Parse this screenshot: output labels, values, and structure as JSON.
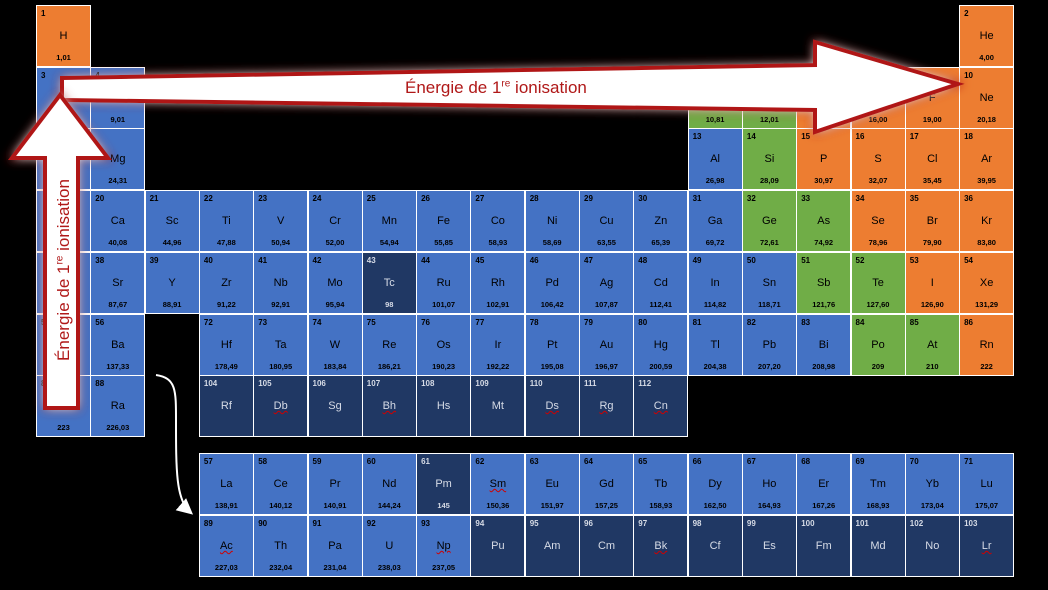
{
  "colors": {
    "metal": "#4472c4",
    "unknown": "#203864",
    "metalloid": "#70ad47",
    "nonmetal": "#ed7d31",
    "arrow_border": "#b01818",
    "arrow_fill": "#ffffff"
  },
  "arrows": {
    "horizontal": {
      "text": "Énergie de 1",
      "sup": "re",
      "text_end": " ionisation"
    },
    "vertical": {
      "text": "Énergie de 1",
      "sup": "re",
      "text_end": " ionisation"
    }
  },
  "elements": [
    {
      "n": "1",
      "s": "H",
      "m": "1,01",
      "row": 1,
      "col": 1,
      "cat": "nonmetal"
    },
    {
      "n": "2",
      "s": "He",
      "m": "4,00",
      "row": 1,
      "col": 18,
      "cat": "nonmetal"
    },
    {
      "n": "3",
      "s": "Li",
      "m": "",
      "row": 2,
      "col": 1,
      "cat": "metal"
    },
    {
      "n": "4",
      "s": "",
      "m": "9,01",
      "row": 2,
      "col": 2,
      "cat": "metal"
    },
    {
      "n": "",
      "s": "",
      "m": "10,81",
      "row": 2,
      "col": 13,
      "cat": "metalloid"
    },
    {
      "n": "",
      "s": "",
      "m": "12,01",
      "row": 2,
      "col": 14,
      "cat": "metalloid"
    },
    {
      "n": "",
      "s": "",
      "m": "",
      "row": 2,
      "col": 15,
      "cat": "nonmetal"
    },
    {
      "n": "",
      "s": "",
      "m": "16,00",
      "row": 2,
      "col": 16,
      "cat": "nonmetal"
    },
    {
      "n": "9",
      "s": "F",
      "m": "19,00",
      "row": 2,
      "col": 17,
      "cat": "nonmetal"
    },
    {
      "n": "10",
      "s": "Ne",
      "m": "20,18",
      "row": 2,
      "col": 18,
      "cat": "nonmetal"
    },
    {
      "n": "",
      "s": "",
      "m": "",
      "row": 3,
      "col": 1,
      "cat": "metal"
    },
    {
      "n": "",
      "s": "Mg",
      "m": "24,31",
      "row": 3,
      "col": 2,
      "cat": "metal"
    },
    {
      "n": "13",
      "s": "Al",
      "m": "26,98",
      "row": 3,
      "col": 13,
      "cat": "metal"
    },
    {
      "n": "14",
      "s": "Si",
      "m": "28,09",
      "row": 3,
      "col": 14,
      "cat": "metalloid"
    },
    {
      "n": "15",
      "s": "P",
      "m": "30,97",
      "row": 3,
      "col": 15,
      "cat": "nonmetal"
    },
    {
      "n": "16",
      "s": "S",
      "m": "32,07",
      "row": 3,
      "col": 16,
      "cat": "nonmetal"
    },
    {
      "n": "17",
      "s": "Cl",
      "m": "35,45",
      "row": 3,
      "col": 17,
      "cat": "nonmetal"
    },
    {
      "n": "18",
      "s": "Ar",
      "m": "39,95",
      "row": 3,
      "col": 18,
      "cat": "nonmetal"
    },
    {
      "n": "",
      "s": "",
      "m": "",
      "row": 4,
      "col": 1,
      "cat": "metal"
    },
    {
      "n": "20",
      "s": "Ca",
      "m": "40,08",
      "row": 4,
      "col": 2,
      "cat": "metal"
    },
    {
      "n": "21",
      "s": "Sc",
      "m": "44,96",
      "row": 4,
      "col": 3,
      "cat": "metal"
    },
    {
      "n": "22",
      "s": "Ti",
      "m": "47,88",
      "row": 4,
      "col": 4,
      "cat": "metal"
    },
    {
      "n": "23",
      "s": "V",
      "m": "50,94",
      "row": 4,
      "col": 5,
      "cat": "metal"
    },
    {
      "n": "24",
      "s": "Cr",
      "m": "52,00",
      "row": 4,
      "col": 6,
      "cat": "metal"
    },
    {
      "n": "25",
      "s": "Mn",
      "m": "54,94",
      "row": 4,
      "col": 7,
      "cat": "metal"
    },
    {
      "n": "26",
      "s": "Fe",
      "m": "55,85",
      "row": 4,
      "col": 8,
      "cat": "metal"
    },
    {
      "n": "27",
      "s": "Co",
      "m": "58,93",
      "row": 4,
      "col": 9,
      "cat": "metal"
    },
    {
      "n": "28",
      "s": "Ni",
      "m": "58,69",
      "row": 4,
      "col": 10,
      "cat": "metal"
    },
    {
      "n": "29",
      "s": "Cu",
      "m": "63,55",
      "row": 4,
      "col": 11,
      "cat": "metal"
    },
    {
      "n": "30",
      "s": "Zn",
      "m": "65,39",
      "row": 4,
      "col": 12,
      "cat": "metal"
    },
    {
      "n": "31",
      "s": "Ga",
      "m": "69,72",
      "row": 4,
      "col": 13,
      "cat": "metal"
    },
    {
      "n": "32",
      "s": "Ge",
      "m": "72,61",
      "row": 4,
      "col": 14,
      "cat": "metalloid"
    },
    {
      "n": "33",
      "s": "As",
      "m": "74,92",
      "row": 4,
      "col": 15,
      "cat": "metalloid"
    },
    {
      "n": "34",
      "s": "Se",
      "m": "78,96",
      "row": 4,
      "col": 16,
      "cat": "nonmetal"
    },
    {
      "n": "35",
      "s": "Br",
      "m": "79,90",
      "row": 4,
      "col": 17,
      "cat": "nonmetal"
    },
    {
      "n": "36",
      "s": "Kr",
      "m": "83,80",
      "row": 4,
      "col": 18,
      "cat": "nonmetal"
    },
    {
      "n": "",
      "s": "",
      "m": "",
      "row": 5,
      "col": 1,
      "cat": "metal"
    },
    {
      "n": "38",
      "s": "Sr",
      "m": "87,67",
      "row": 5,
      "col": 2,
      "cat": "metal"
    },
    {
      "n": "39",
      "s": "Y",
      "m": "88,91",
      "row": 5,
      "col": 3,
      "cat": "metal"
    },
    {
      "n": "40",
      "s": "Zr",
      "m": "91,22",
      "row": 5,
      "col": 4,
      "cat": "metal"
    },
    {
      "n": "41",
      "s": "Nb",
      "m": "92,91",
      "row": 5,
      "col": 5,
      "cat": "metal"
    },
    {
      "n": "42",
      "s": "Mo",
      "m": "95,94",
      "row": 5,
      "col": 6,
      "cat": "metal"
    },
    {
      "n": "43",
      "s": "Tc",
      "m": "98",
      "row": 5,
      "col": 7,
      "cat": "unknown"
    },
    {
      "n": "44",
      "s": "Ru",
      "m": "101,07",
      "row": 5,
      "col": 8,
      "cat": "metal"
    },
    {
      "n": "45",
      "s": "Rh",
      "m": "102,91",
      "row": 5,
      "col": 9,
      "cat": "metal"
    },
    {
      "n": "46",
      "s": "Pd",
      "m": "106,42",
      "row": 5,
      "col": 10,
      "cat": "metal"
    },
    {
      "n": "47",
      "s": "Ag",
      "m": "107,87",
      "row": 5,
      "col": 11,
      "cat": "metal"
    },
    {
      "n": "48",
      "s": "Cd",
      "m": "112,41",
      "row": 5,
      "col": 12,
      "cat": "metal"
    },
    {
      "n": "49",
      "s": "In",
      "m": "114,82",
      "row": 5,
      "col": 13,
      "cat": "metal"
    },
    {
      "n": "50",
      "s": "Sn",
      "m": "118,71",
      "row": 5,
      "col": 14,
      "cat": "metal"
    },
    {
      "n": "51",
      "s": "Sb",
      "m": "121,76",
      "row": 5,
      "col": 15,
      "cat": "metalloid"
    },
    {
      "n": "52",
      "s": "Te",
      "m": "127,60",
      "row": 5,
      "col": 16,
      "cat": "metalloid"
    },
    {
      "n": "53",
      "s": "I",
      "m": "126,90",
      "row": 5,
      "col": 17,
      "cat": "nonmetal"
    },
    {
      "n": "54",
      "s": "Xe",
      "m": "131,29",
      "row": 5,
      "col": 18,
      "cat": "nonmetal"
    },
    {
      "n": "5",
      "s": "",
      "m": "",
      "row": 6,
      "col": 1,
      "cat": "metal"
    },
    {
      "n": "56",
      "s": "Ba",
      "m": "137,33",
      "row": 6,
      "col": 2,
      "cat": "metal"
    },
    {
      "n": "72",
      "s": "Hf",
      "m": "178,49",
      "row": 6,
      "col": 4,
      "cat": "metal"
    },
    {
      "n": "73",
      "s": "Ta",
      "m": "180,95",
      "row": 6,
      "col": 5,
      "cat": "metal"
    },
    {
      "n": "74",
      "s": "W",
      "m": "183,84",
      "row": 6,
      "col": 6,
      "cat": "metal"
    },
    {
      "n": "75",
      "s": "Re",
      "m": "186,21",
      "row": 6,
      "col": 7,
      "cat": "metal"
    },
    {
      "n": "76",
      "s": "Os",
      "m": "190,23",
      "row": 6,
      "col": 8,
      "cat": "metal"
    },
    {
      "n": "77",
      "s": "Ir",
      "m": "192,22",
      "row": 6,
      "col": 9,
      "cat": "metal"
    },
    {
      "n": "78",
      "s": "Pt",
      "m": "195,08",
      "row": 6,
      "col": 10,
      "cat": "metal"
    },
    {
      "n": "79",
      "s": "Au",
      "m": "196,97",
      "row": 6,
      "col": 11,
      "cat": "metal"
    },
    {
      "n": "80",
      "s": "Hg",
      "m": "200,59",
      "row": 6,
      "col": 12,
      "cat": "metal"
    },
    {
      "n": "81",
      "s": "Tl",
      "m": "204,38",
      "row": 6,
      "col": 13,
      "cat": "metal"
    },
    {
      "n": "82",
      "s": "Pb",
      "m": "207,20",
      "row": 6,
      "col": 14,
      "cat": "metal"
    },
    {
      "n": "83",
      "s": "Bi",
      "m": "208,98",
      "row": 6,
      "col": 15,
      "cat": "metal"
    },
    {
      "n": "84",
      "s": "Po",
      "m": "209",
      "row": 6,
      "col": 16,
      "cat": "metalloid"
    },
    {
      "n": "85",
      "s": "At",
      "m": "210",
      "row": 6,
      "col": 17,
      "cat": "metalloid"
    },
    {
      "n": "86",
      "s": "Rn",
      "m": "222",
      "row": 6,
      "col": 18,
      "cat": "nonmetal"
    },
    {
      "n": "8",
      "s": "",
      "m": "223",
      "row": 7,
      "col": 1,
      "cat": "metal"
    },
    {
      "n": "88",
      "s": "Ra",
      "m": "226,03",
      "row": 7,
      "col": 2,
      "cat": "metal"
    },
    {
      "n": "104",
      "s": "Rf",
      "m": "",
      "row": 7,
      "col": 4,
      "cat": "unknown"
    },
    {
      "n": "105",
      "s": "Db",
      "m": "",
      "row": 7,
      "col": 5,
      "cat": "unknown",
      "sq": true
    },
    {
      "n": "106",
      "s": "Sg",
      "m": "",
      "row": 7,
      "col": 6,
      "cat": "unknown"
    },
    {
      "n": "107",
      "s": "Bh",
      "m": "",
      "row": 7,
      "col": 7,
      "cat": "unknown",
      "sq": true
    },
    {
      "n": "108",
      "s": "Hs",
      "m": "",
      "row": 7,
      "col": 8,
      "cat": "unknown"
    },
    {
      "n": "109",
      "s": "Mt",
      "m": "",
      "row": 7,
      "col": 9,
      "cat": "unknown"
    },
    {
      "n": "110",
      "s": "Ds",
      "m": "",
      "row": 7,
      "col": 10,
      "cat": "unknown",
      "sq": true
    },
    {
      "n": "111",
      "s": "Rg",
      "m": "",
      "row": 7,
      "col": 11,
      "cat": "unknown",
      "sq": true
    },
    {
      "n": "112",
      "s": "Cn",
      "m": "",
      "row": 7,
      "col": 12,
      "cat": "unknown",
      "sq": true
    },
    {
      "n": "57",
      "s": "La",
      "m": "138,91",
      "row": 8,
      "col": 4,
      "cat": "metal"
    },
    {
      "n": "58",
      "s": "Ce",
      "m": "140,12",
      "row": 8,
      "col": 5,
      "cat": "metal"
    },
    {
      "n": "59",
      "s": "Pr",
      "m": "140,91",
      "row": 8,
      "col": 6,
      "cat": "metal"
    },
    {
      "n": "60",
      "s": "Nd",
      "m": "144,24",
      "row": 8,
      "col": 7,
      "cat": "metal"
    },
    {
      "n": "61",
      "s": "Pm",
      "m": "145",
      "row": 8,
      "col": 8,
      "cat": "unknown"
    },
    {
      "n": "62",
      "s": "Sm",
      "m": "150,36",
      "row": 8,
      "col": 9,
      "cat": "metal",
      "sq": true
    },
    {
      "n": "63",
      "s": "Eu",
      "m": "151,97",
      "row": 8,
      "col": 10,
      "cat": "metal"
    },
    {
      "n": "64",
      "s": "Gd",
      "m": "157,25",
      "row": 8,
      "col": 11,
      "cat": "metal"
    },
    {
      "n": "65",
      "s": "Tb",
      "m": "158,93",
      "row": 8,
      "col": 12,
      "cat": "metal"
    },
    {
      "n": "66",
      "s": "Dy",
      "m": "162,50",
      "row": 8,
      "col": 13,
      "cat": "metal"
    },
    {
      "n": "67",
      "s": "Ho",
      "m": "164,93",
      "row": 8,
      "col": 14,
      "cat": "metal"
    },
    {
      "n": "68",
      "s": "Er",
      "m": "167,26",
      "row": 8,
      "col": 15,
      "cat": "metal"
    },
    {
      "n": "69",
      "s": "Tm",
      "m": "168,93",
      "row": 8,
      "col": 16,
      "cat": "metal"
    },
    {
      "n": "70",
      "s": "Yb",
      "m": "173,04",
      "row": 8,
      "col": 17,
      "cat": "metal"
    },
    {
      "n": "71",
      "s": "Lu",
      "m": "175,07",
      "row": 8,
      "col": 18,
      "cat": "metal"
    },
    {
      "n": "89",
      "s": "Ac",
      "m": "227,03",
      "row": 9,
      "col": 4,
      "cat": "metal",
      "sq": true
    },
    {
      "n": "90",
      "s": "Th",
      "m": "232,04",
      "row": 9,
      "col": 5,
      "cat": "metal"
    },
    {
      "n": "91",
      "s": "Pa",
      "m": "231,04",
      "row": 9,
      "col": 6,
      "cat": "metal"
    },
    {
      "n": "92",
      "s": "U",
      "m": "238,03",
      "row": 9,
      "col": 7,
      "cat": "metal"
    },
    {
      "n": "93",
      "s": "Np",
      "m": "237,05",
      "row": 9,
      "col": 8,
      "cat": "metal",
      "sq": true
    },
    {
      "n": "94",
      "s": "Pu",
      "m": "",
      "row": 9,
      "col": 9,
      "cat": "unknown"
    },
    {
      "n": "95",
      "s": "Am",
      "m": "",
      "row": 9,
      "col": 10,
      "cat": "unknown"
    },
    {
      "n": "96",
      "s": "Cm",
      "m": "",
      "row": 9,
      "col": 11,
      "cat": "unknown"
    },
    {
      "n": "97",
      "s": "Bk",
      "m": "",
      "row": 9,
      "col": 12,
      "cat": "unknown",
      "sq": true
    },
    {
      "n": "98",
      "s": "Cf",
      "m": "",
      "row": 9,
      "col": 13,
      "cat": "unknown"
    },
    {
      "n": "99",
      "s": "Es",
      "m": "",
      "row": 9,
      "col": 14,
      "cat": "unknown"
    },
    {
      "n": "100",
      "s": "Fm",
      "m": "",
      "row": 9,
      "col": 15,
      "cat": "unknown"
    },
    {
      "n": "101",
      "s": "Md",
      "m": "",
      "row": 9,
      "col": 16,
      "cat": "unknown"
    },
    {
      "n": "102",
      "s": "No",
      "m": "",
      "row": 9,
      "col": 17,
      "cat": "unknown"
    },
    {
      "n": "103",
      "s": "Lr",
      "m": "",
      "row": 9,
      "col": 18,
      "cat": "unknown",
      "sq": true
    }
  ]
}
